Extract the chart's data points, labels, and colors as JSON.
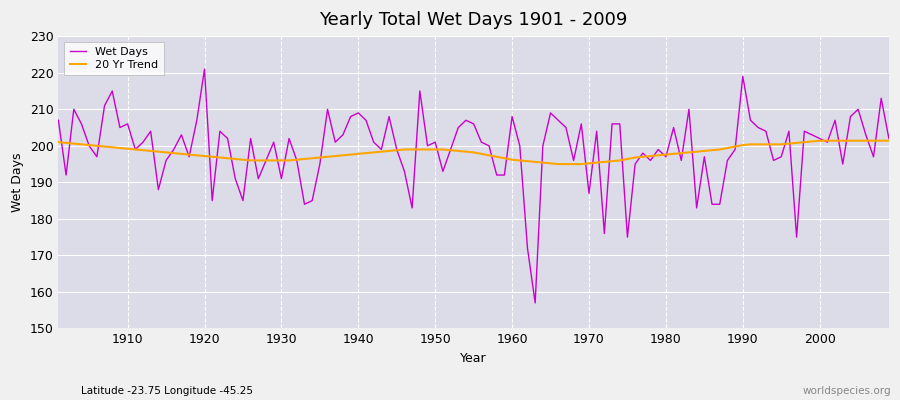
{
  "title": "Yearly Total Wet Days 1901 - 2009",
  "xlabel": "Year",
  "ylabel": "Wet Days",
  "subtitle_left": "Latitude -23.75 Longitude -45.25",
  "watermark": "worldspecies.org",
  "ylim": [
    150,
    230
  ],
  "yticks": [
    150,
    160,
    170,
    180,
    190,
    200,
    210,
    220,
    230
  ],
  "xlim": [
    1901,
    2009
  ],
  "xticks": [
    1910,
    1920,
    1930,
    1940,
    1950,
    1960,
    1970,
    1980,
    1990,
    2000
  ],
  "wet_days_color": "#cc00cc",
  "trend_color": "#FFA500",
  "fig_bg_color": "#f0f0f0",
  "plot_bg_color": "#dcdce8",
  "years": [
    1901,
    1902,
    1903,
    1904,
    1905,
    1906,
    1907,
    1908,
    1909,
    1910,
    1911,
    1912,
    1913,
    1914,
    1915,
    1916,
    1917,
    1918,
    1919,
    1920,
    1921,
    1922,
    1923,
    1924,
    1925,
    1926,
    1927,
    1928,
    1929,
    1930,
    1931,
    1932,
    1933,
    1934,
    1935,
    1936,
    1937,
    1938,
    1939,
    1940,
    1941,
    1942,
    1943,
    1944,
    1945,
    1946,
    1947,
    1948,
    1949,
    1950,
    1951,
    1952,
    1953,
    1954,
    1955,
    1956,
    1957,
    1958,
    1959,
    1960,
    1961,
    1962,
    1963,
    1964,
    1965,
    1966,
    1967,
    1968,
    1969,
    1970,
    1971,
    1972,
    1973,
    1974,
    1975,
    1976,
    1977,
    1978,
    1979,
    1980,
    1981,
    1982,
    1983,
    1984,
    1985,
    1986,
    1987,
    1988,
    1989,
    1990,
    1991,
    1992,
    1993,
    1994,
    1995,
    1996,
    1997,
    1998,
    1999,
    2000,
    2001,
    2002,
    2003,
    2004,
    2005,
    2006,
    2007,
    2008,
    2009
  ],
  "wet_days": [
    207,
    192,
    210,
    206,
    200,
    197,
    211,
    215,
    205,
    206,
    199,
    201,
    204,
    188,
    196,
    199,
    203,
    197,
    207,
    221,
    185,
    204,
    202,
    191,
    185,
    202,
    191,
    196,
    201,
    191,
    202,
    196,
    184,
    185,
    195,
    210,
    201,
    203,
    208,
    209,
    207,
    201,
    199,
    208,
    199,
    193,
    183,
    215,
    200,
    201,
    193,
    199,
    205,
    207,
    206,
    201,
    200,
    192,
    192,
    208,
    200,
    172,
    157,
    200,
    209,
    207,
    205,
    196,
    206,
    187,
    204,
    176,
    206,
    206,
    175,
    195,
    198,
    196,
    199,
    197,
    205,
    196,
    210,
    183,
    197,
    184,
    184,
    196,
    199,
    219,
    207,
    205,
    204,
    196,
    197,
    204,
    175,
    204,
    203,
    202,
    201,
    207,
    195,
    208,
    210,
    203,
    197,
    213,
    202
  ],
  "trend_values": [
    201.0,
    200.8,
    200.6,
    200.4,
    200.2,
    200.0,
    199.8,
    199.6,
    199.4,
    199.2,
    199.0,
    198.8,
    198.6,
    198.4,
    198.2,
    198.0,
    197.8,
    197.6,
    197.4,
    197.2,
    197.0,
    196.8,
    196.6,
    196.4,
    196.2,
    196.0,
    196.0,
    196.0,
    196.0,
    196.0,
    196.0,
    196.2,
    196.4,
    196.6,
    196.8,
    197.0,
    197.2,
    197.4,
    197.6,
    197.8,
    198.0,
    198.2,
    198.4,
    198.6,
    198.8,
    199.0,
    199.0,
    199.0,
    199.0,
    199.0,
    199.0,
    198.8,
    198.6,
    198.4,
    198.2,
    197.8,
    197.4,
    197.0,
    196.6,
    196.2,
    196.0,
    195.8,
    195.6,
    195.4,
    195.2,
    195.0,
    195.0,
    195.0,
    195.0,
    195.2,
    195.4,
    195.6,
    195.8,
    196.0,
    196.4,
    196.8,
    197.0,
    197.2,
    197.4,
    197.6,
    197.8,
    198.0,
    198.2,
    198.4,
    198.6,
    198.8,
    199.0,
    199.4,
    199.8,
    200.2,
    200.4,
    200.4,
    200.4,
    200.4,
    200.4,
    200.6,
    200.8,
    201.0,
    201.2,
    201.4,
    201.4,
    201.4,
    201.4,
    201.4,
    201.4,
    201.4,
    201.4,
    201.4,
    201.4
  ]
}
